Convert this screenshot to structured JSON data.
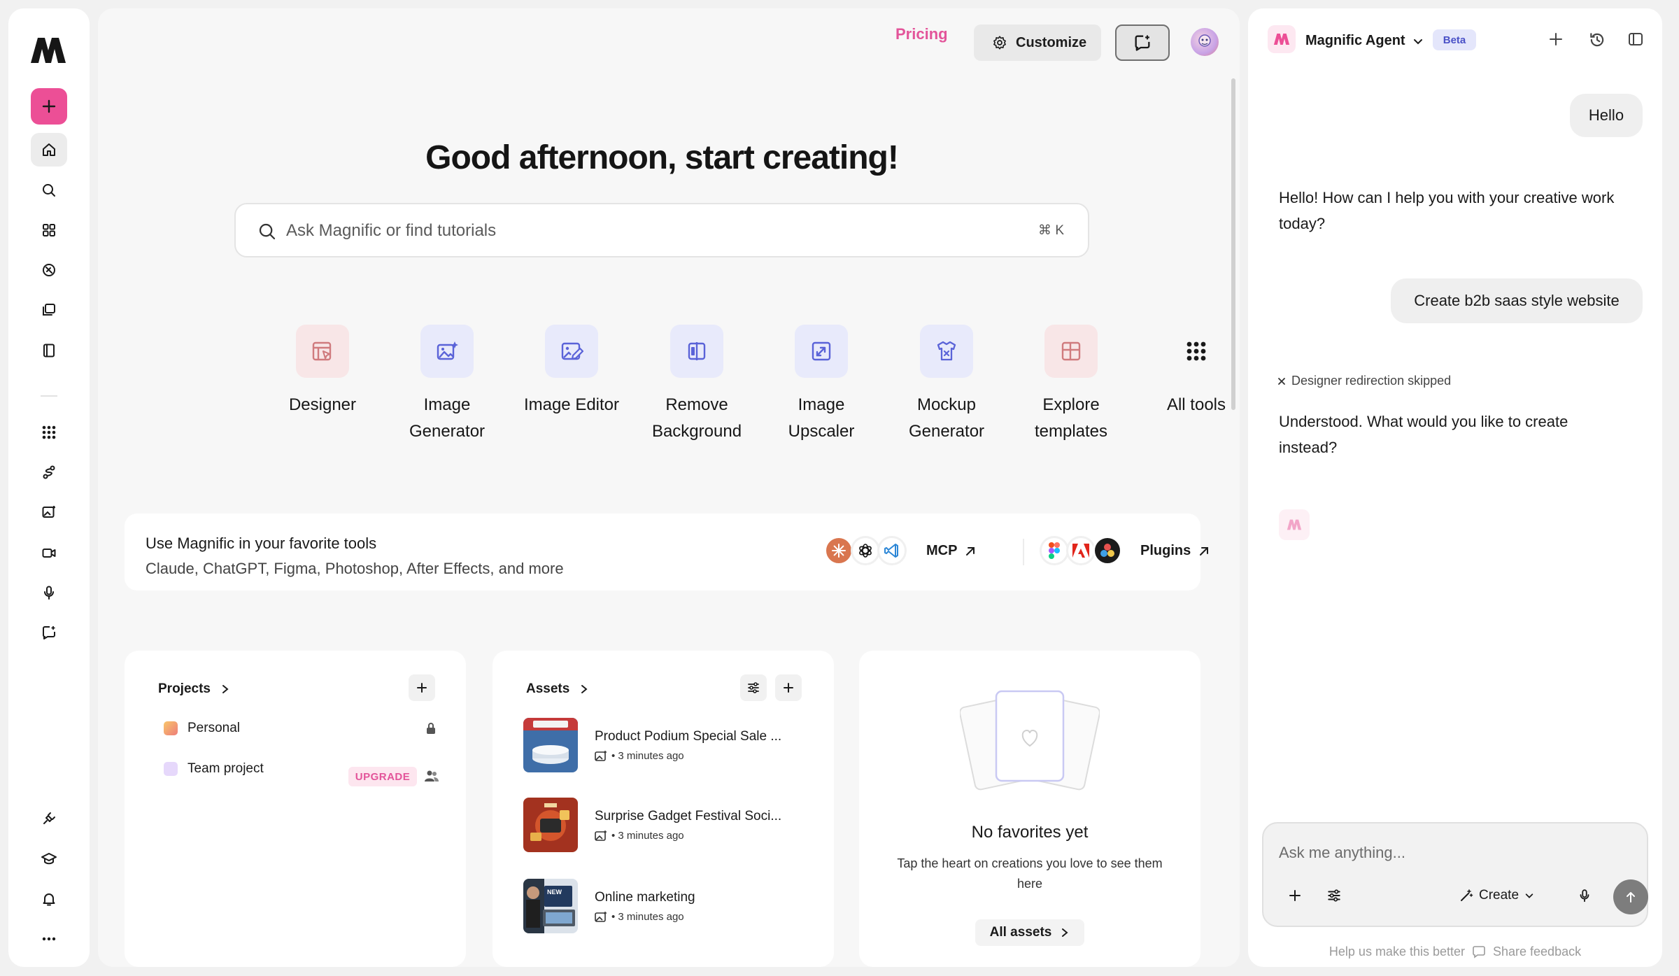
{
  "header": {
    "pricing_label": "Pricing",
    "customize_label": "Customize"
  },
  "greeting": "Good afternoon, start creating!",
  "search": {
    "placeholder": "Ask Magnific or find tutorials",
    "shortcut": "⌘ K"
  },
  "tools": [
    {
      "label_line1": "Designer",
      "label_line2": "",
      "icon": "designer-icon",
      "bg": "#f8e6e7",
      "color": "#d07b7e"
    },
    {
      "label_line1": "Image",
      "label_line2": "Generator",
      "icon": "image-generator-icon",
      "bg": "#e8eafb",
      "color": "#5a63d8"
    },
    {
      "label_line1": "Image Editor",
      "label_line2": "",
      "icon": "image-editor-icon",
      "bg": "#e8eafb",
      "color": "#5a63d8"
    },
    {
      "label_line1": "Remove",
      "label_line2": "Background",
      "icon": "remove-background-icon",
      "bg": "#e8eafb",
      "color": "#5a63d8"
    },
    {
      "label_line1": "Image",
      "label_line2": "Upscaler",
      "icon": "upscaler-icon",
      "bg": "#e8eafb",
      "color": "#5a63d8"
    },
    {
      "label_line1": "Mockup",
      "label_line2": "Generator",
      "icon": "mockup-icon",
      "bg": "#e8eafb",
      "color": "#5a63d8"
    },
    {
      "label_line1": "Explore",
      "label_line2": "templates",
      "icon": "templates-icon",
      "bg": "#f8e6e7",
      "color": "#d07b7e"
    },
    {
      "label_line1": "All tools",
      "label_line2": "",
      "icon": "grid-icon",
      "bg": "transparent",
      "color": "#1a1a1a"
    }
  ],
  "integrations": {
    "title": "Use Magnific in your favorite tools",
    "subtitle": "Claude, ChatGPT, Figma, Photoshop, After Effects, and more",
    "mcp_label": "MCP",
    "plugins_label": "Plugins"
  },
  "projects": {
    "title": "Projects",
    "items": [
      {
        "name": "Personal",
        "badge": ""
      },
      {
        "name": "Team project",
        "badge": "UPGRADE"
      }
    ]
  },
  "assets": {
    "title": "Assets",
    "items": [
      {
        "name": "Product Podium Special Sale ...",
        "meta": "• 3 minutes ago"
      },
      {
        "name": "Surprise Gadget Festival Soci...",
        "meta": "• 3 minutes ago"
      },
      {
        "name": "Online marketing",
        "meta": "• 3 minutes ago"
      }
    ]
  },
  "favorites": {
    "title": "No favorites yet",
    "subtitle": "Tap the heart on creations you love to see them here",
    "button": "All assets"
  },
  "agent": {
    "title": "Magnific Agent",
    "badge": "Beta",
    "messages": [
      {
        "role": "user",
        "text": "Hello"
      },
      {
        "role": "agent",
        "text": "Hello! How can I help you with your creative work today?"
      },
      {
        "role": "user",
        "text": "Create b2b saas style website"
      },
      {
        "role": "system",
        "text": "Designer redirection skipped"
      },
      {
        "role": "agent",
        "text": "Understood. What would you like to create instead?"
      }
    ],
    "composer_placeholder": "Ask me anything...",
    "create_label": "Create",
    "footer_left": "Help us make this better",
    "footer_right": "Share feedback"
  },
  "colors": {
    "brand_pink": "#ec4f96",
    "accent_indigo": "#5a63d8"
  }
}
